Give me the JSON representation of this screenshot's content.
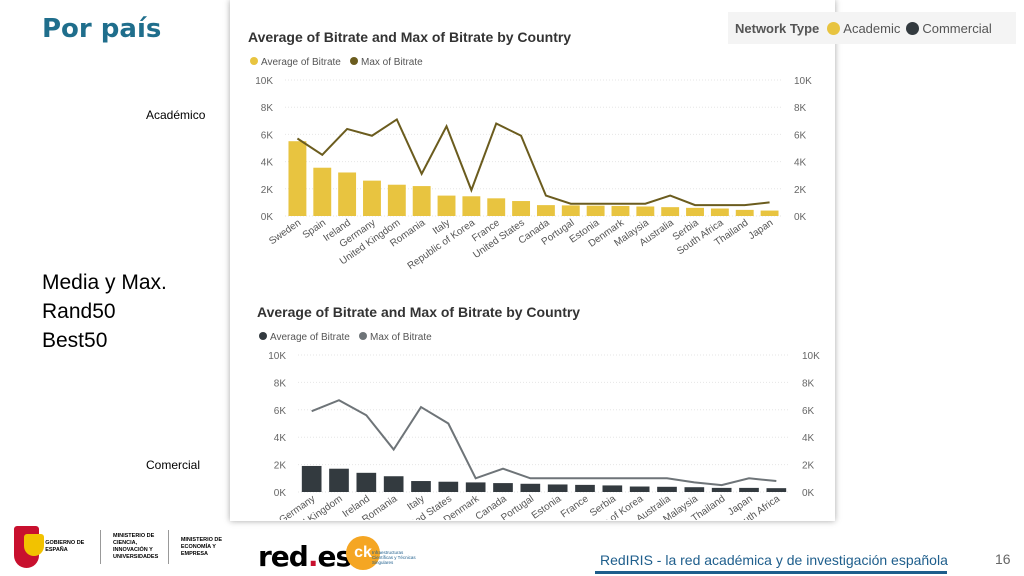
{
  "slide": {
    "title": "Por país",
    "label_academic": "Académico",
    "label_commercial": "Comercial",
    "body_lines": [
      "Media y Max.",
      "Rand50",
      "Best50"
    ],
    "footer_text": "RedIRIS - la red académica y de investigación española",
    "page_number": "16"
  },
  "legend_filter": {
    "title": "Network Type",
    "items": [
      {
        "label": "Academic",
        "color": "#e8c440"
      },
      {
        "label": "Commercial",
        "color": "#333a3f"
      }
    ]
  },
  "logos": {
    "gov_ministry1": "MINISTERIO DE CIENCIA, INNOVACIÓN Y UNIVERSIDADES",
    "gov_ministry2": "MINISTERIO DE ECONOMÍA Y EMPRESA",
    "gov_spain": "GOBIERNO DE ESPAÑA",
    "reds_main": "red",
    "reds_dot": ".",
    "reds_end": "es",
    "ck_mark": "ck",
    "ck_sub": "Infraestructuras Científicas y Técnicas Singulares"
  },
  "chart_data": [
    {
      "type": "bar",
      "title": "Average of Bitrate and Max of Bitrate by Country",
      "series_colors": {
        "bar": "#e8c440",
        "line": "#6b5c1e"
      },
      "legend": [
        {
          "name": "Average of Bitrate"
        },
        {
          "name": "Max of Bitrate"
        }
      ],
      "categories": [
        "Sweden",
        "Spain",
        "Ireland",
        "Germany",
        "United Kingdom",
        "Romania",
        "Italy",
        "Republic of Korea",
        "France",
        "United States",
        "Canada",
        "Portugal",
        "Estonia",
        "Denmark",
        "Malaysia",
        "Australia",
        "Serbia",
        "South Africa",
        "Thailand",
        "Japan"
      ],
      "series": [
        {
          "name": "Average of Bitrate",
          "kind": "bar",
          "values": [
            5500,
            3550,
            3200,
            2600,
            2300,
            2200,
            1500,
            1450,
            1300,
            1100,
            800,
            780,
            760,
            740,
            700,
            650,
            600,
            550,
            450,
            400
          ]
        },
        {
          "name": "Max of Bitrate",
          "kind": "line",
          "values": [
            5700,
            4500,
            6400,
            5900,
            7100,
            3100,
            6600,
            1900,
            6800,
            5900,
            1500,
            900,
            900,
            900,
            900,
            1500,
            800,
            800,
            800,
            1000
          ]
        }
      ],
      "ylim": [
        0,
        10000
      ],
      "yticks": [
        "0K",
        "2K",
        "4K",
        "6K",
        "8K",
        "10K"
      ]
    },
    {
      "type": "bar",
      "title": "Average of Bitrate and Max of Bitrate by Country",
      "series_colors": {
        "bar": "#333a3f",
        "line": "#6e7478"
      },
      "legend": [
        {
          "name": "Average of Bitrate"
        },
        {
          "name": "Max of Bitrate"
        }
      ],
      "categories": [
        "Germany",
        "United Kingdom",
        "Ireland",
        "Romania",
        "Italy",
        "United States",
        "Denmark",
        "Canada",
        "Portugal",
        "Estonia",
        "France",
        "Serbia",
        "Republic of Korea",
        "Australia",
        "Malaysia",
        "Thailand",
        "Japan",
        "South Africa"
      ],
      "series": [
        {
          "name": "Average of Bitrate",
          "kind": "bar",
          "values": [
            1900,
            1700,
            1400,
            1150,
            800,
            750,
            700,
            650,
            600,
            550,
            520,
            480,
            400,
            380,
            350,
            300,
            300,
            280
          ]
        },
        {
          "name": "Max of Bitrate",
          "kind": "line",
          "values": [
            5900,
            6700,
            5600,
            3100,
            6200,
            5000,
            1000,
            1700,
            1000,
            1000,
            1000,
            1000,
            1000,
            1000,
            700,
            500,
            1000,
            800
          ]
        }
      ],
      "ylim": [
        0,
        10000
      ],
      "yticks": [
        "0K",
        "2K",
        "4K",
        "6K",
        "8K",
        "10K"
      ]
    }
  ]
}
